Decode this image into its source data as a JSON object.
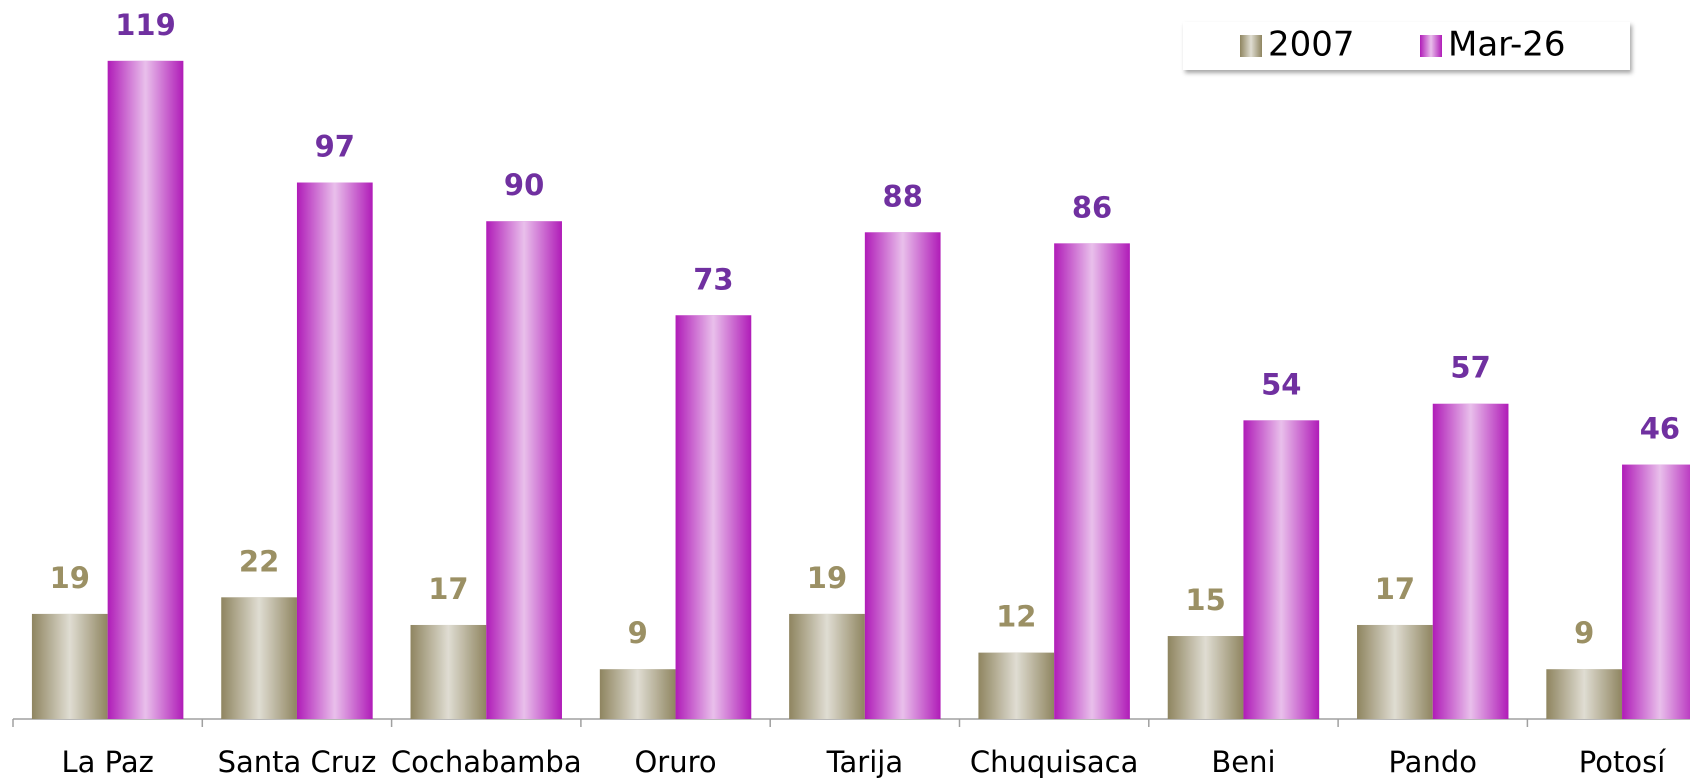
{
  "chart_data": {
    "type": "bar",
    "categories": [
      "La Paz",
      "Santa Cruz",
      "Cochabamba",
      "Oruro",
      "Tarija",
      "Chuquisaca",
      "Beni",
      "Pando",
      "Potosí"
    ],
    "series": [
      {
        "name": "2007",
        "color": "#8f8560",
        "label_color": "#9b9064",
        "values": [
          19,
          22,
          17,
          9,
          19,
          12,
          15,
          17,
          9
        ]
      },
      {
        "name": "Mar-26",
        "color": "#b01cb8",
        "label_color": "#7030a0",
        "values": [
          119,
          97,
          90,
          73,
          88,
          86,
          54,
          57,
          46
        ]
      }
    ],
    "ylim": [
      0,
      130
    ],
    "legend": "top-right",
    "grid": false
  }
}
